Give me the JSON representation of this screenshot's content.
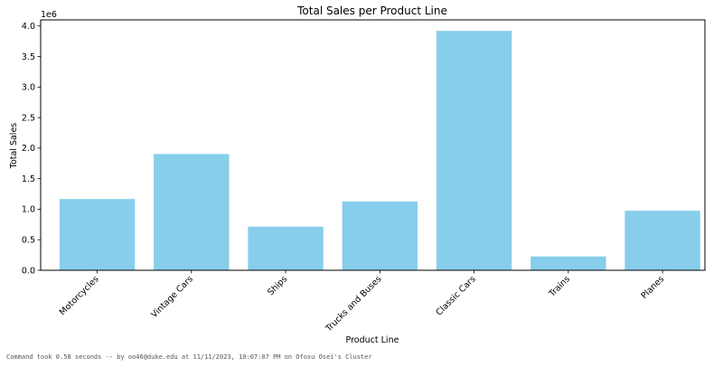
{
  "chart_data": {
    "type": "bar",
    "title": "Total Sales per Product Line",
    "xlabel": "Product Line",
    "ylabel": "Total Sales",
    "y_offset_label": "1e6",
    "categories": [
      "Motorcycles",
      "Vintage Cars",
      "Ships",
      "Trucks and Buses",
      "Classic Cars",
      "Trains",
      "Planes"
    ],
    "values": [
      1166388,
      1903151,
      714437,
      1127789,
      3919616,
      226243,
      975004
    ],
    "ylim": [
      0,
      4100000
    ],
    "yticks": [
      0,
      500000,
      1000000,
      1500000,
      2000000,
      2500000,
      3000000,
      3500000,
      4000000
    ],
    "ytick_labels": [
      "0.0",
      "0.5",
      "1.0",
      "1.5",
      "2.0",
      "2.5",
      "3.0",
      "3.5",
      "4.0"
    ],
    "bar_color": "#87ceeb",
    "grid": false,
    "legend": "none"
  },
  "footer": {
    "text": "Command took 0.58 seconds -- by oo46@duke.edu at 11/11/2023, 10:07:07 PM on Ofosu Osei's Cluster"
  }
}
